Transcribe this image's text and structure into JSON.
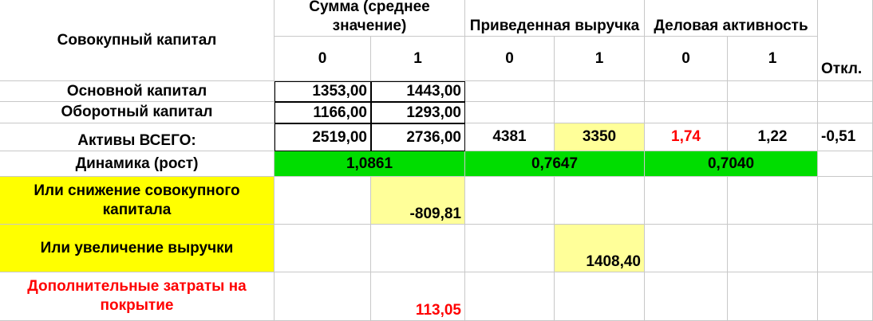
{
  "header": {
    "title": "Совокупный капитал",
    "groups": [
      "Сумма (среднее значение)",
      "Приведенная выручка",
      "Деловая активность"
    ],
    "subheaders": [
      "0",
      "1",
      "0",
      "1",
      "0",
      "1"
    ],
    "extra": "Откл."
  },
  "rows": [
    {
      "label": "Основной капитал",
      "values": [
        "1353,00",
        "1443,00"
      ]
    },
    {
      "label": "Оборотный капитал",
      "values": [
        "1166,00",
        "1293,00"
      ]
    },
    {
      "label": "Активы ВСЕГО:",
      "values": [
        "2519,00",
        "2736,00",
        "4381",
        "3350",
        "1,74",
        "1,22",
        "-0,51"
      ]
    },
    {
      "label": "Динамика (рост)",
      "values": [
        "1,0861",
        "0,7647",
        "0,7040"
      ]
    },
    {
      "label": "Или снижение совокупного капитала",
      "values": [
        "-809,81"
      ]
    },
    {
      "label": "Или увеличение выручки",
      "values": [
        "1408,40"
      ]
    },
    {
      "label": "Дополнительные затраты на покрытие",
      "values": [
        "113,05"
      ]
    }
  ]
}
